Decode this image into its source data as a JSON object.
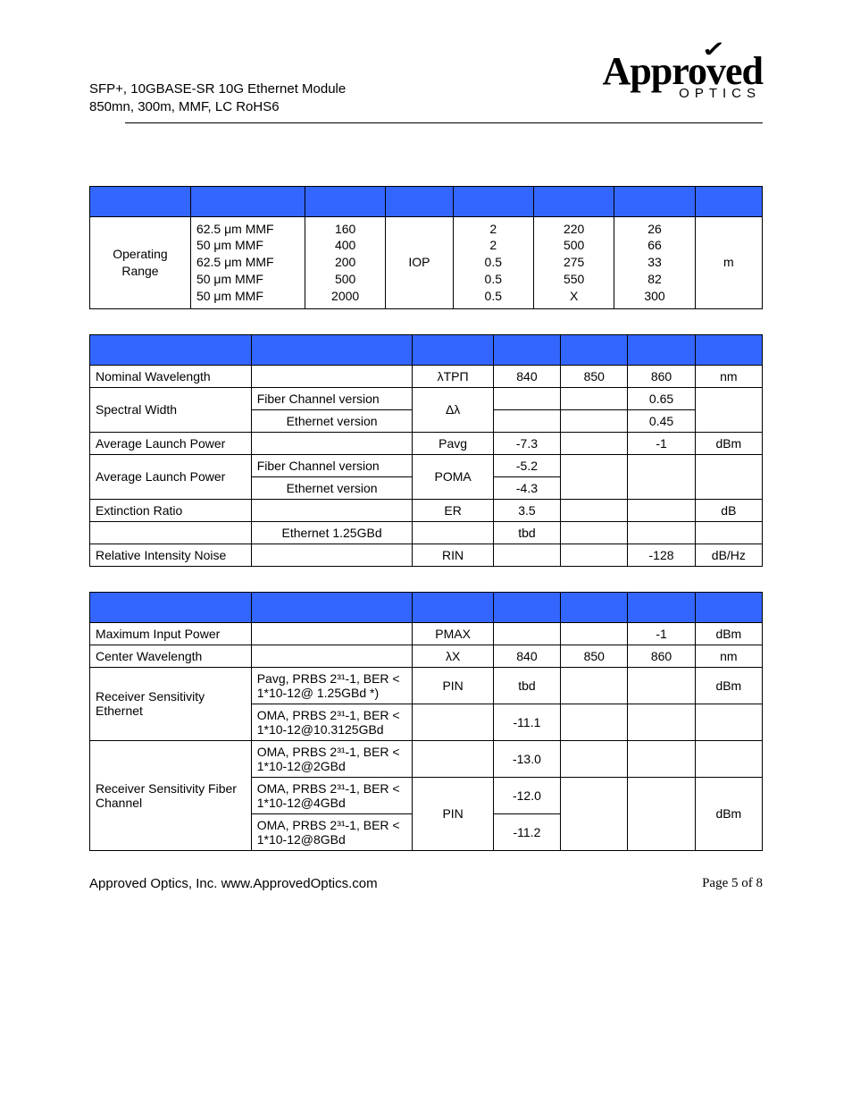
{
  "header": {
    "line1": "SFP+, 10GBASE-SR 10G Ethernet Module",
    "line2": "850mn, 300m, MMF, LC RoHS6"
  },
  "logo": {
    "main_pre": "Appro",
    "main_v": "v",
    "main_post": "ed",
    "sub": "OPTICS"
  },
  "colors": {
    "header_bg": "#3366ff",
    "border": "#000000",
    "text": "#000000"
  },
  "table1": {
    "widths_pct": [
      15,
      17,
      12,
      10,
      12,
      12,
      12,
      10
    ],
    "header_blanks": 8,
    "rows": [
      {
        "c0": "Operating Range",
        "c1": "62.5 μm MMF\n50 μm MMF\n62.5 μm MMF\n50 μm MMF\n50 μm MMF",
        "c2": "160\n400\n200\n500\n2000",
        "c3": "IOP",
        "c4": "2\n2\n0.5\n0.5\n0.5",
        "c5": "220\n500\n275\n550\nX",
        "c6": "26\n66\n33\n82\n300",
        "c7": "m"
      }
    ]
  },
  "table2": {
    "widths_pct": [
      24,
      24,
      12,
      10,
      10,
      10,
      10
    ],
    "header_blanks": 7,
    "rows": [
      {
        "cells": [
          "Nominal Wavelength",
          "",
          "λTPΠ",
          "840",
          "850",
          "860",
          "nm"
        ],
        "align": [
          "left",
          "left",
          "center",
          "center",
          "center",
          "center",
          "center"
        ]
      },
      {
        "cells": [
          "Spectral Width",
          "Fiber Channel version",
          "Δλ",
          "",
          "",
          "0.65",
          ""
        ],
        "align": [
          "left",
          "left",
          "center",
          "center",
          "center",
          "center",
          "center"
        ],
        "rowspans": {
          "0": 2,
          "2": 2,
          "6": 2
        }
      },
      {
        "cells": [
          "Ethernet version",
          "",
          "",
          "0.45"
        ],
        "align": [
          "center",
          "center",
          "center",
          "center"
        ]
      },
      {
        "cells": [
          "Average Launch Power",
          "",
          "Pavg",
          "-7.3",
          "",
          "-1",
          "dBm"
        ],
        "align": [
          "left",
          "left",
          "center",
          "center",
          "center",
          "center",
          "center"
        ]
      },
      {
        "cells": [
          "Average Launch Power",
          "Fiber Channel version",
          "POMA",
          "-5.2",
          "",
          "",
          ""
        ],
        "align": [
          "left",
          "left",
          "center",
          "center",
          "center",
          "center",
          "center"
        ],
        "rowspans": {
          "0": 2,
          "2": 2,
          "4": 2,
          "5": 2,
          "6": 2
        }
      },
      {
        "cells": [
          "Ethernet version",
          "-4.3"
        ],
        "align": [
          "center",
          "center"
        ]
      },
      {
        "cells": [
          "Extinction Ratio",
          "",
          "ER",
          "3.5",
          "",
          "",
          "dB"
        ],
        "align": [
          "left",
          "left",
          "center",
          "center",
          "center",
          "center",
          "center"
        ]
      },
      {
        "cells": [
          "",
          "Ethernet 1.25GBd",
          "",
          "tbd",
          "",
          "",
          ""
        ],
        "align": [
          "left",
          "center",
          "center",
          "center",
          "center",
          "center",
          "center"
        ]
      },
      {
        "cells": [
          "Relative Intensity Noise",
          "",
          "RIN",
          "",
          "",
          "-128",
          "dB/Hz"
        ],
        "align": [
          "left",
          "left",
          "center",
          "center",
          "center",
          "center",
          "center"
        ]
      }
    ]
  },
  "table3": {
    "widths_pct": [
      24,
      24,
      12,
      10,
      10,
      10,
      10
    ],
    "header_blanks": 7,
    "rows": [
      {
        "cells": [
          "Maximum Input Power",
          "",
          "PMAX",
          "",
          "",
          "-1",
          "dBm"
        ],
        "align": [
          "left",
          "left",
          "center",
          "center",
          "center",
          "center",
          "center"
        ]
      },
      {
        "cells": [
          "Center Wavelength",
          "",
          "λX",
          "840",
          "850",
          "860",
          "nm"
        ],
        "align": [
          "left",
          "left",
          "center",
          "center",
          "center",
          "center",
          "center"
        ]
      },
      {
        "cells": [
          "Receiver Sensitivity Ethernet",
          "Pavg, PRBS 2³¹-1, BER < 1*10-12@ 1.25GBd *)",
          "PIN",
          "tbd",
          "",
          "",
          "dBm"
        ],
        "align": [
          "left",
          "left",
          "center",
          "center",
          "center",
          "center",
          "center"
        ],
        "rowspans": {
          "0": 2
        }
      },
      {
        "cells": [
          "OMA, PRBS 2³¹-1, BER < 1*10-12@10.3125GBd",
          "",
          "-11.1",
          "",
          "",
          ""
        ],
        "align": [
          "left",
          "center",
          "center",
          "center",
          "center",
          "center"
        ]
      },
      {
        "cells": [
          "Receiver Sensitivity Fiber Channel",
          "OMA, PRBS 2³¹-1, BER < 1*10-12@2GBd",
          "",
          "-13.0",
          "",
          "",
          ""
        ],
        "align": [
          "left",
          "left",
          "center",
          "center",
          "center",
          "center",
          "center"
        ],
        "rowspans": {
          "0": 3
        }
      },
      {
        "cells": [
          "OMA, PRBS 2³¹-1, BER < 1*10-12@4GBd",
          "PIN",
          "-12.0",
          "",
          "",
          "dBm"
        ],
        "align": [
          "left",
          "center",
          "center",
          "center",
          "center",
          "center"
        ],
        "rowspans": {
          "1": 2,
          "3": 2,
          "4": 2,
          "5": 2
        }
      },
      {
        "cells": [
          "OMA, PRBS 2³¹-1, BER < 1*10-12@8GBd",
          "-11.2"
        ],
        "align": [
          "left",
          "center"
        ]
      }
    ]
  },
  "footer": {
    "left": "Approved Optics, Inc.  www.ApprovedOptics.com",
    "right": "Page 5 of 8"
  }
}
